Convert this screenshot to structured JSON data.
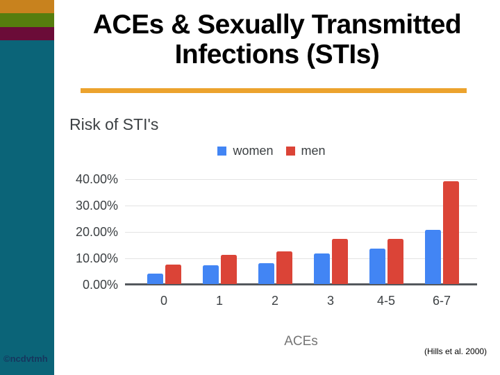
{
  "sidebar": {
    "background": "#0B6478",
    "bands": [
      {
        "name": "orange",
        "color": "#C8821E"
      },
      {
        "name": "olive",
        "color": "#567D0E"
      },
      {
        "name": "maroon",
        "color": "#6B0C38"
      }
    ],
    "watermark": "©ncdvtmh",
    "watermark_color": "#16365E"
  },
  "slide": {
    "title_line1": "ACEs & Sexually Transmitted",
    "title_line2": "Infections (STIs)",
    "underline_color": "#ECA32E",
    "citation": "(Hills et al. 2000)"
  },
  "chart_data": {
    "type": "bar",
    "title": "Risk of STI's",
    "xlabel": "ACEs",
    "ylabel": "",
    "categories": [
      "0",
      "1",
      "2",
      "3",
      "4-5",
      "6-7"
    ],
    "series": [
      {
        "name": "women",
        "color": "#4285F4",
        "values": [
          4.0,
          7.0,
          8.0,
          11.5,
          13.5,
          20.5
        ]
      },
      {
        "name": "men",
        "color": "#DB4437",
        "values": [
          7.5,
          11.0,
          12.5,
          17.0,
          17.0,
          39.0
        ]
      }
    ],
    "ylim": [
      0,
      40
    ],
    "yticks": [
      "0.00%",
      "10.00%",
      "20.00%",
      "30.00%",
      "40.00%"
    ],
    "grid": true,
    "legend_position": "top",
    "axis_text_color": "#3C4043",
    "gridline_color": "#E3E3E3",
    "baseline_color": "#53575C"
  }
}
